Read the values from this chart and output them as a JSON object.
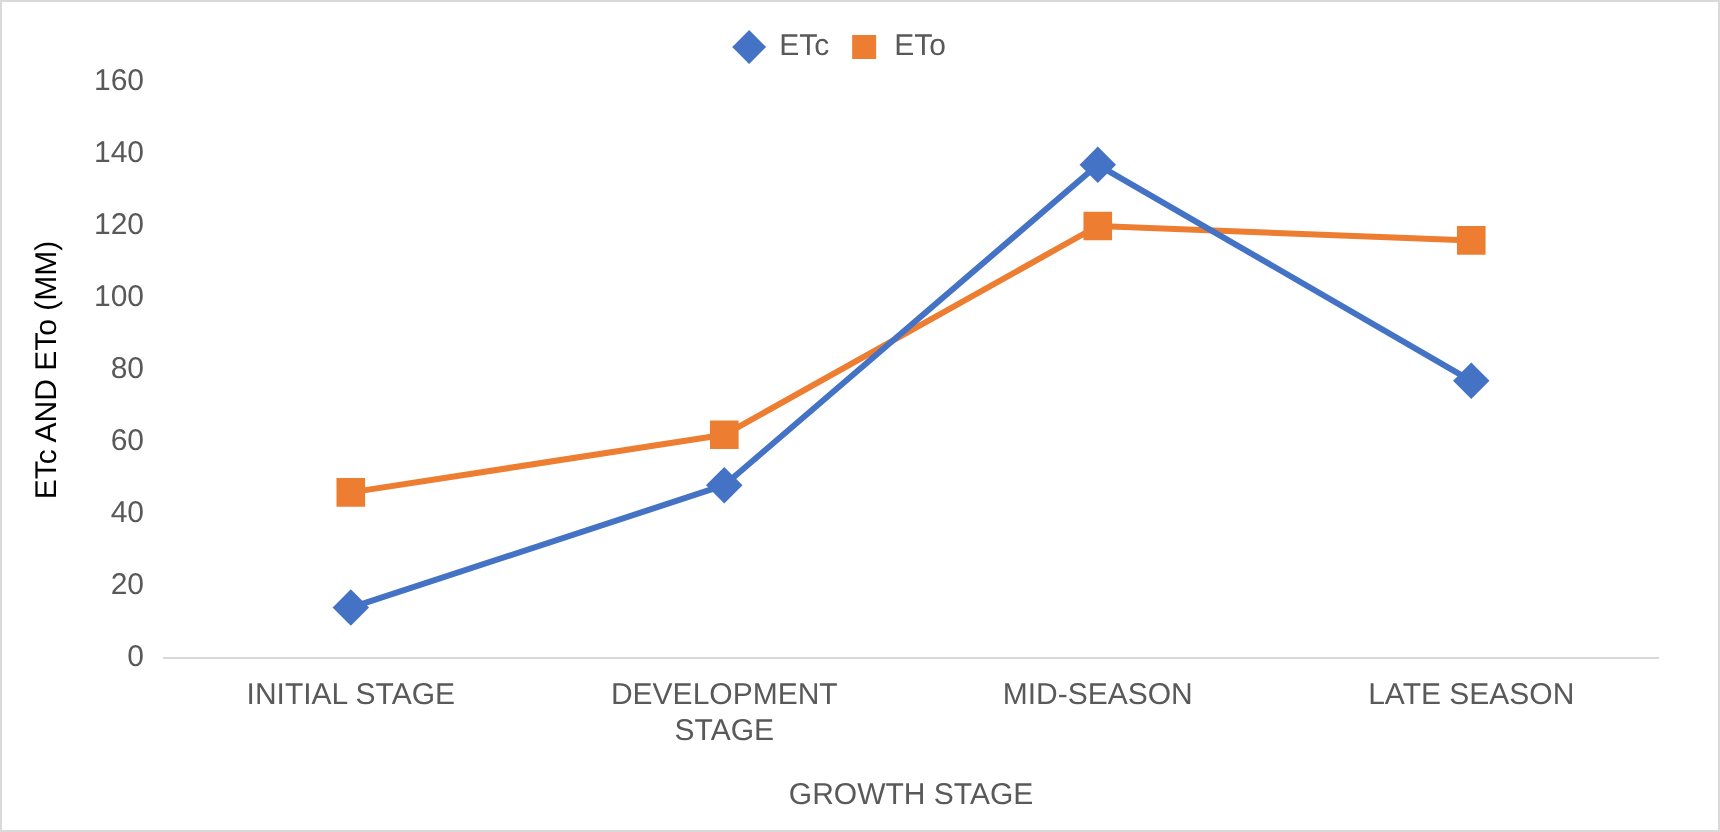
{
  "chart_data": {
    "type": "line",
    "xlabel": "GROWTH STAGE",
    "ylabel": "ETc AND ETo (MM)",
    "categories": [
      "INITIAL STAGE",
      "DEVELOPMENT STAGE",
      "MID-SEASON",
      "LATE SEASON"
    ],
    "series": [
      {
        "name": "ETc",
        "color": "#4472c4",
        "marker": "diamond",
        "values": [
          14,
          48,
          137,
          77
        ]
      },
      {
        "name": "ETo",
        "color": "#ed7d31",
        "marker": "square",
        "values": [
          46,
          62,
          120,
          116
        ]
      }
    ],
    "ylim": [
      0,
      160
    ],
    "yticks": [
      0,
      20,
      40,
      60,
      80,
      100,
      120,
      140,
      160
    ],
    "grid": false,
    "legend": "top",
    "line_style": "solid"
  }
}
